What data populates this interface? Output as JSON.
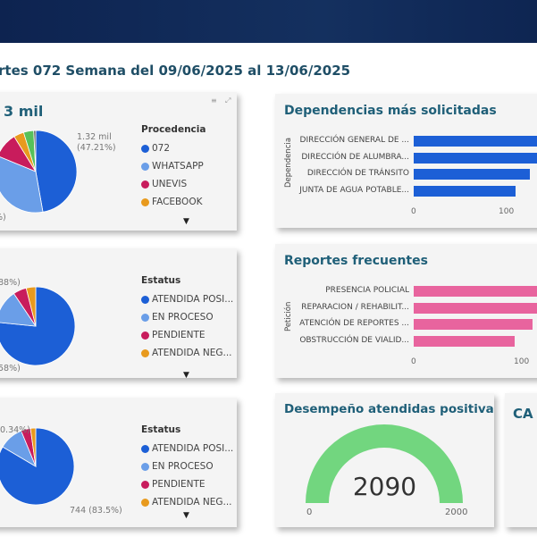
{
  "page": {
    "title": "rtes 072 Semana del 09/06/2025 al 13/06/2025"
  },
  "card1": {
    "title": "3 mil",
    "legend_title": "Procedencia",
    "legend": [
      {
        "label": "072",
        "color": "#1c5fd6"
      },
      {
        "label": "WHATSAPP",
        "color": "#6a9ee8"
      },
      {
        "label": "UNEVIS",
        "color": "#c81c5c"
      },
      {
        "label": "FACEBOOK",
        "color": "#e89a1e"
      }
    ],
    "slices": [
      {
        "value": 47.21,
        "color": "#1c5fd6"
      },
      {
        "value": 34,
        "color": "#6a9ee8"
      },
      {
        "value": 10,
        "color": "#c81c5c"
      },
      {
        "value": 4,
        "color": "#e89a1e"
      },
      {
        "value": 4,
        "color": "#56c15a"
      },
      {
        "value": 0.79,
        "color": "#555555"
      }
    ],
    "label_main": "1.32 mil",
    "label_main_pct": "(47.21%)",
    "label_partial": "%)"
  },
  "card2": {
    "legend_title": "Estatus",
    "legend": [
      {
        "label": "ATENDIDA POSI...",
        "color": "#1c5fd6"
      },
      {
        "label": "EN PROCESO",
        "color": "#6a9ee8"
      },
      {
        "label": "PENDIENTE",
        "color": "#c81c5c"
      },
      {
        "label": "ATENDIDA NEG...",
        "color": "#e89a1e"
      }
    ],
    "slices": [
      {
        "value": 76.58,
        "color": "#1c5fd6"
      },
      {
        "value": 14,
        "color": "#6a9ee8"
      },
      {
        "value": 5.5,
        "color": "#c81c5c"
      },
      {
        "value": 3.92,
        "color": "#e89a1e"
      }
    ],
    "label_top": "88%)",
    "label_bottom": "58%)"
  },
  "card3": {
    "legend_title": "Estatus",
    "legend": [
      {
        "label": "ATENDIDA POSI...",
        "color": "#1c5fd6"
      },
      {
        "label": "EN PROCESO",
        "color": "#6a9ee8"
      },
      {
        "label": "PENDIENTE",
        "color": "#c81c5c"
      },
      {
        "label": "ATENDIDA NEG...",
        "color": "#e89a1e"
      }
    ],
    "slices": [
      {
        "value": 83.5,
        "color": "#1c5fd6"
      },
      {
        "value": 10.3,
        "color": "#6a9ee8"
      },
      {
        "value": 4,
        "color": "#c81c5c"
      },
      {
        "value": 2.2,
        "color": "#e89a1e"
      }
    ],
    "label_top": "0.34%)",
    "label_bottom": "744 (83.5%)"
  },
  "dependencias": {
    "title": "Dependencias más solicitadas",
    "ytitle": "Dependencia",
    "color": "#1c5fd6",
    "categories": [
      "DIRECCIÓN GENERAL DE ...",
      "DIRECCIÓN DE ALUMBRA...",
      "DIRECCIÓN DE TRÁNSITO",
      "JUNTA DE AGUA POTABLE..."
    ],
    "values": [
      150,
      145,
      133,
      116
    ],
    "ticks": [
      "0",
      "100"
    ]
  },
  "reportes": {
    "title": "Reportes frecuentes",
    "ytitle": "Petición",
    "color": "#e8649e",
    "categories": [
      "PRESENCIA POLICIAL",
      "REPARACION / REHABILIT...",
      "ATENCIÓN DE REPORTES ...",
      "OBSTRUCCIÓN DE VIALID..."
    ],
    "values": [
      130,
      125,
      116,
      98
    ],
    "ticks": [
      "0",
      "100"
    ]
  },
  "gauge": {
    "title": "Desempeño atendidas positivas",
    "value": "2090",
    "min": "0",
    "max": "2000",
    "color": "#72d67f"
  },
  "card_ca": {
    "title": "CA"
  },
  "more_icon": "▼"
}
